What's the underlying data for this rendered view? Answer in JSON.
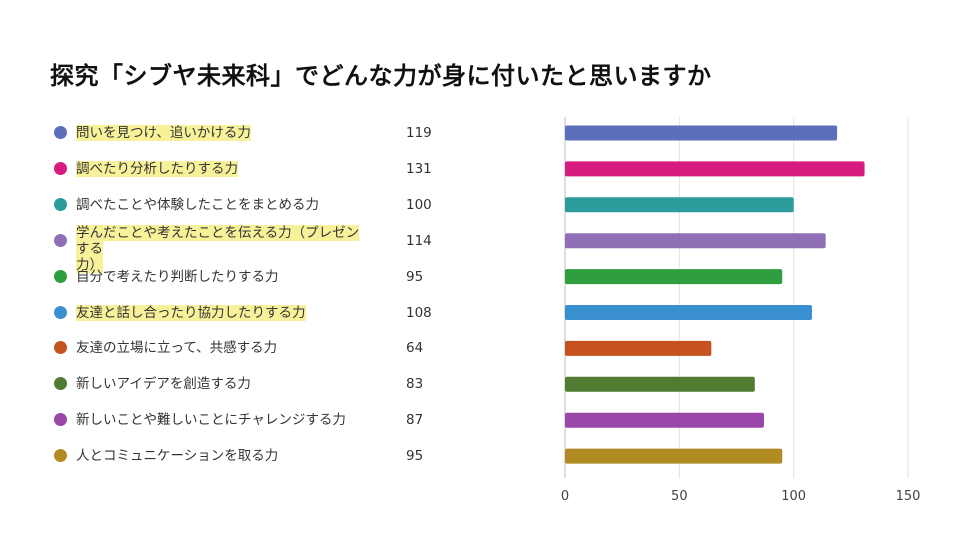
{
  "title": "探究「シブヤ未来科」でどんな力が身に付いたと思いますか",
  "chart_data": {
    "type": "bar",
    "orientation": "horizontal",
    "categories": [
      "問いを見つけ、追いかける力",
      "調べたり分析したりする力",
      "調べたことや体験したことをまとめる力",
      "学んだことや考えたことを伝える力（プレゼンする力）",
      "自分で考えたり判断したりする力",
      "友達と話し合ったり協力したりする力",
      "友達の立場に立って、共感する力",
      "新しいアイデアを創造する力",
      "新しいことや難しいことにチャレンジする力",
      "人とコミュニケーションを取る力"
    ],
    "label_lines": [
      [
        "問いを見つけ、追いかける力"
      ],
      [
        "調べたり分析したりする力"
      ],
      [
        "調べたことや体験したことをまとめる力"
      ],
      [
        "学んだことや考えたことを伝える力（プレゼンする",
        "力）"
      ],
      [
        "自分で考えたり判断したりする力"
      ],
      [
        "友達と話し合ったり協力したりする力"
      ],
      [
        "友達の立場に立って、共感する力"
      ],
      [
        "新しいアイデアを創造する力"
      ],
      [
        "新しいことや難しいことにチャレンジする力"
      ],
      [
        "人とコミュニケーションを取る力"
      ]
    ],
    "values": [
      119,
      131,
      100,
      114,
      95,
      108,
      64,
      83,
      87,
      95
    ],
    "highlighted": [
      true,
      true,
      false,
      true,
      false,
      true,
      false,
      false,
      false,
      false
    ],
    "colors": [
      "#5b6fba",
      "#d81b7f",
      "#2a9c9c",
      "#8f6fb5",
      "#2e9e3e",
      "#3a8fd0",
      "#c5521f",
      "#507b32",
      "#9a45a8",
      "#b08a22"
    ],
    "xlim": [
      0,
      150
    ],
    "xticks": [
      0,
      50,
      100,
      150
    ],
    "grid": true,
    "legend": "left"
  }
}
